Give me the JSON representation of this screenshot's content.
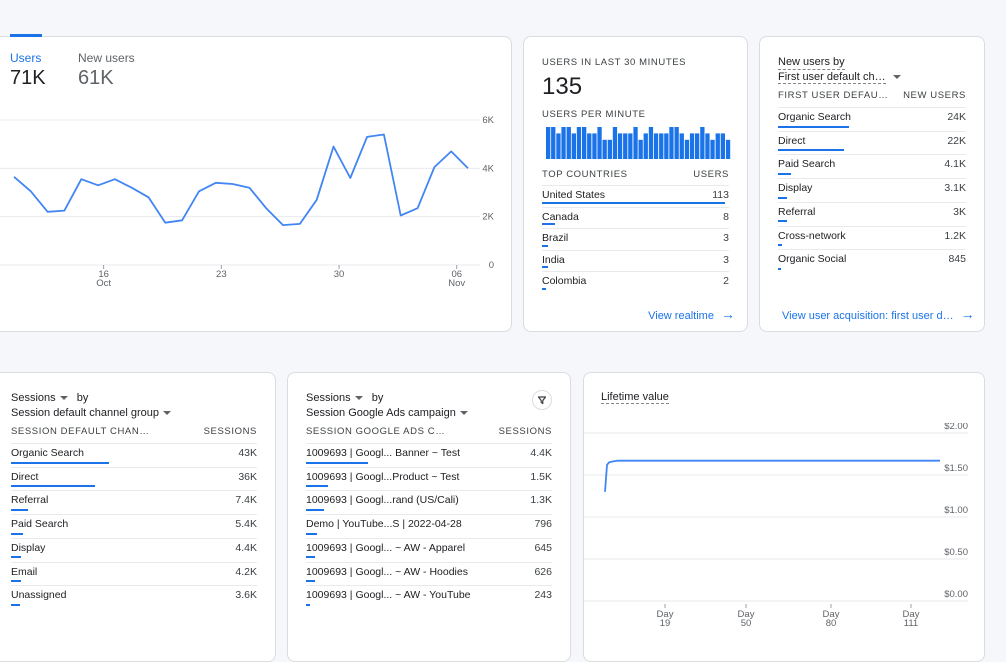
{
  "overview": {
    "metrics": [
      {
        "label": "Users",
        "value": "71K"
      },
      {
        "label": "New users",
        "value": "61K"
      }
    ],
    "chart_data": {
      "type": "line",
      "title": "",
      "x_ticks": [
        {
          "day": "16",
          "month": "Oct"
        },
        {
          "day": "23",
          "month": ""
        },
        {
          "day": "30",
          "month": ""
        },
        {
          "day": "06",
          "month": "Nov"
        }
      ],
      "y_ticks": [
        "6K",
        "4K",
        "2K",
        "0"
      ],
      "ylim": [
        0,
        6000
      ],
      "series": [
        {
          "name": "Users",
          "values": [
            3650,
            3050,
            2200,
            2250,
            3550,
            3300,
            3550,
            3200,
            2800,
            1750,
            1850,
            3050,
            3400,
            3350,
            3200,
            2350,
            1650,
            1700,
            2700,
            4900,
            3600,
            5300,
            5400,
            2050,
            2350,
            4050,
            4700,
            4000
          ]
        }
      ]
    }
  },
  "realtime": {
    "users_label": "USERS IN LAST 30 MINUTES",
    "users_value": "135",
    "per_minute_label": "USERS PER MINUTE",
    "per_minute_values": [
      5,
      5,
      4,
      5,
      5,
      4,
      5,
      5,
      4,
      4,
      5,
      3,
      3,
      5,
      4,
      4,
      4,
      5,
      3,
      4,
      5,
      4,
      4,
      4,
      5,
      5,
      4,
      3,
      4,
      4,
      5,
      4,
      3,
      4,
      4,
      3
    ],
    "countries_header": "TOP COUNTRIES",
    "users_header": "USERS",
    "countries": [
      {
        "name": "United States",
        "value": "113",
        "share": 0.98
      },
      {
        "name": "Canada",
        "value": "8",
        "share": 0.07
      },
      {
        "name": "Brazil",
        "value": "3",
        "share": 0.03
      },
      {
        "name": "India",
        "value": "3",
        "share": 0.03
      },
      {
        "name": "Colombia",
        "value": "2",
        "share": 0.02
      }
    ],
    "link": "View realtime"
  },
  "acquisition": {
    "title_line1": "New users by",
    "title_line2": "First user default ch…",
    "col1": "FIRST USER DEFAU…",
    "col2": "NEW USERS",
    "rows": [
      {
        "name": "Organic Search",
        "value": "24K",
        "share": 0.38
      },
      {
        "name": "Direct",
        "value": "22K",
        "share": 0.35
      },
      {
        "name": "Paid Search",
        "value": "4.1K",
        "share": 0.07
      },
      {
        "name": "Display",
        "value": "3.1K",
        "share": 0.05
      },
      {
        "name": "Referral",
        "value": "3K",
        "share": 0.05
      },
      {
        "name": "Cross-network",
        "value": "1.2K",
        "share": 0.02
      },
      {
        "name": "Organic Social",
        "value": "845",
        "share": 0.015
      }
    ],
    "link": "View user acquisition: first user d…"
  },
  "sessions_channel": {
    "title_line1": "Sessions",
    "title_by": "by",
    "title_line2": "Session default channel group",
    "col1": "SESSION DEFAULT CHAN…",
    "col2": "SESSIONS",
    "rows": [
      {
        "name": "Organic Search",
        "value": "43K",
        "share": 0.4
      },
      {
        "name": "Direct",
        "value": "36K",
        "share": 0.34
      },
      {
        "name": "Referral",
        "value": "7.4K",
        "share": 0.07
      },
      {
        "name": "Paid Search",
        "value": "5.4K",
        "share": 0.05
      },
      {
        "name": "Display",
        "value": "4.4K",
        "share": 0.04
      },
      {
        "name": "Email",
        "value": "4.2K",
        "share": 0.04
      },
      {
        "name": "Unassigned",
        "value": "3.6K",
        "share": 0.035
      }
    ]
  },
  "sessions_campaign": {
    "title_line1": "Sessions",
    "title_by": "by",
    "title_line2": "Session Google Ads campaign",
    "col1": "SESSION GOOGLE ADS C…",
    "col2": "SESSIONS",
    "rows": [
      {
        "name": "1009693 | Googl... Banner ~ Test",
        "value": "4.4K",
        "share": 0.25
      },
      {
        "name": "1009693 | Googl...Product ~ Test",
        "value": "1.5K",
        "share": 0.09
      },
      {
        "name": "1009693 | Googl...rand (US/Cali)",
        "value": "1.3K",
        "share": 0.075
      },
      {
        "name": "Demo | YouTube...S | 2022-04-28",
        "value": "796",
        "share": 0.045
      },
      {
        "name": "1009693 | Googl... ~ AW - Apparel",
        "value": "645",
        "share": 0.037
      },
      {
        "name": "1009693 | Googl... ~ AW - Hoodies",
        "value": "626",
        "share": 0.036
      },
      {
        "name": "1009693 | Googl... ~ AW - YouTube",
        "value": "243",
        "share": 0.014
      }
    ]
  },
  "ltv": {
    "title": "Lifetime value",
    "chart_data": {
      "type": "line",
      "title": "Lifetime value",
      "x_ticks": [
        {
          "label": "Day",
          "sub": "19"
        },
        {
          "label": "Day",
          "sub": "50"
        },
        {
          "label": "Day",
          "sub": "80"
        },
        {
          "label": "Day",
          "sub": "111"
        }
      ],
      "y_ticks": [
        "$2.00",
        "$1.50",
        "$1.00",
        "$0.50",
        "$0.00"
      ],
      "ylim": [
        0,
        2
      ],
      "series": [
        {
          "name": "LTV",
          "values": [
            1.3,
            1.62,
            1.65,
            1.66,
            1.67,
            1.67,
            1.67,
            1.67,
            1.67,
            1.67,
            1.67,
            1.67
          ]
        }
      ]
    }
  },
  "colors": {
    "accent": "#1a73e8"
  }
}
